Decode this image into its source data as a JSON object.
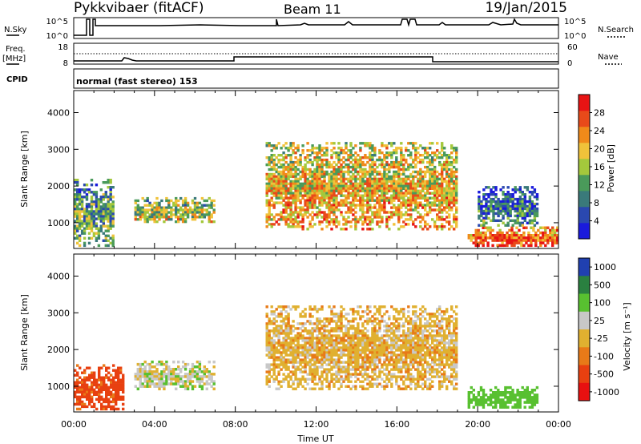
{
  "header": {
    "radar": "Pykkvibaer (fitACF)",
    "beam": "Beam 11",
    "date": "19/Jan/2015"
  },
  "top_labels": {
    "nsky": "N.Sky",
    "freq": "Freq.",
    "freq_unit": "[MHz]",
    "cpid": "CPID",
    "nsearch": "N.Search",
    "nave": "Nave",
    "cpid_text": "normal (fast stereo) 153",
    "sky_ticks": [
      "10^5",
      "10^0"
    ],
    "freq_ticks": [
      "18",
      "8"
    ],
    "nave_ticks": [
      "60",
      "0"
    ]
  },
  "colors": {
    "power_scale": [
      "#1a1adc",
      "#2a48b0",
      "#3a7a7a",
      "#4a9a5a",
      "#a4c83c",
      "#f0c23a",
      "#f08a1a",
      "#e84a1a",
      "#e81414"
    ],
    "velocity_scale": [
      "#2040b0",
      "#2a8040",
      "#58c030",
      "#c8c8c8",
      "#e0b030",
      "#e87a18",
      "#e84010",
      "#e81010"
    ]
  },
  "chart_data": [
    {
      "type": "heatmap",
      "name": "power",
      "ylabel": "Slant Range [km]",
      "xlabel": "",
      "ylim": [
        300,
        4600
      ],
      "xlim": [
        "00:00",
        "24:00"
      ],
      "yticks": [
        "1000",
        "2000",
        "3000",
        "4000"
      ],
      "colorbar": {
        "label": "Power [dB]",
        "ticks": [
          "28",
          "24",
          "20",
          "16",
          "12",
          "8",
          "4"
        ],
        "range": [
          0,
          32
        ]
      },
      "regions": [
        {
          "t_start": 0.0,
          "t_end": 2.0,
          "range_low": 350,
          "range_high": 2200,
          "value": 12
        },
        {
          "t_start": 3.0,
          "t_end": 7.0,
          "range_low": 1000,
          "range_high": 1700,
          "value": 16
        },
        {
          "t_start": 9.5,
          "t_end": 19.0,
          "range_low": 800,
          "range_high": 3200,
          "value": 20
        },
        {
          "t_start": 19.5,
          "t_end": 24.0,
          "range_low": 350,
          "range_high": 900,
          "value": 26
        },
        {
          "t_start": 20.0,
          "t_end": 23.0,
          "range_low": 900,
          "range_high": 2000,
          "value": 8
        }
      ]
    },
    {
      "type": "heatmap",
      "name": "velocity",
      "ylabel": "Slant Range [km]",
      "xlabel": "Time UT",
      "ylim": [
        300,
        4600
      ],
      "xlim": [
        "00:00",
        "24:00"
      ],
      "yticks": [
        "1000",
        "2000",
        "3000",
        "4000"
      ],
      "xticks": [
        "00:00",
        "04:00",
        "08:00",
        "12:00",
        "16:00",
        "20:00",
        "00:00"
      ],
      "colorbar": {
        "label": "Velocity [m s⁻¹]",
        "ticks": [
          "1000",
          "500",
          "100",
          "25",
          "-25",
          "-100",
          "-500",
          "-1000"
        ]
      },
      "regions": [
        {
          "t_start": 0.0,
          "t_end": 2.5,
          "range_low": 350,
          "range_high": 1600,
          "value": -200
        },
        {
          "t_start": 3.0,
          "t_end": 7.0,
          "range_low": 900,
          "range_high": 1700,
          "value": 60
        },
        {
          "t_start": 9.5,
          "t_end": 19.0,
          "range_low": 900,
          "range_high": 3200,
          "value": 0
        },
        {
          "t_start": 19.5,
          "t_end": 23.0,
          "range_low": 400,
          "range_high": 1000,
          "value": 300
        }
      ]
    }
  ]
}
